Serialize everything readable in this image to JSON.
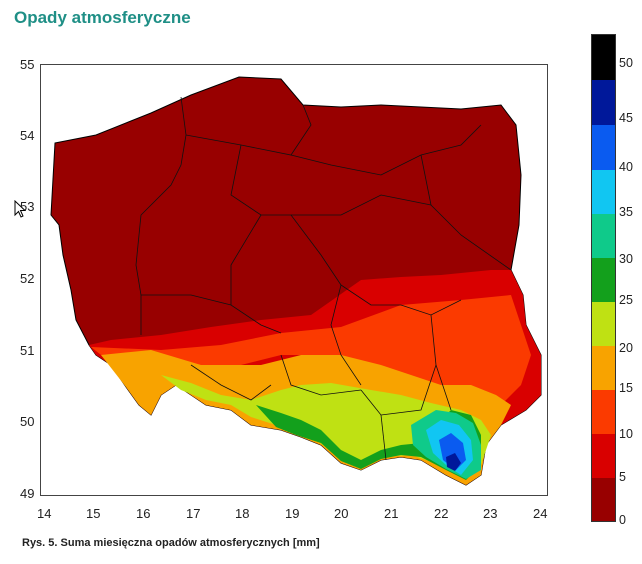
{
  "title": "Opady atmosferyczne",
  "caption": "Rys. 5. Suma miesięczna opadów atmosferycznych [mm]",
  "axes": {
    "x_ticks": [
      "14",
      "15",
      "16",
      "17",
      "18",
      "19",
      "20",
      "21",
      "22",
      "23",
      "24"
    ],
    "y_ticks": [
      "55",
      "54",
      "53",
      "52",
      "51",
      "50",
      "49"
    ]
  },
  "legend": {
    "labels": [
      "50",
      "45",
      "40",
      "35",
      "30",
      "25",
      "20",
      "15",
      "10",
      "5",
      "0"
    ],
    "colors": [
      "#000000",
      "#00189a",
      "#0a5bf0",
      "#11c6f2",
      "#0fca8a",
      "#13a01c",
      "#bfe113",
      "#f8a300",
      "#fb3a00",
      "#d90000",
      "#980000"
    ]
  }
}
